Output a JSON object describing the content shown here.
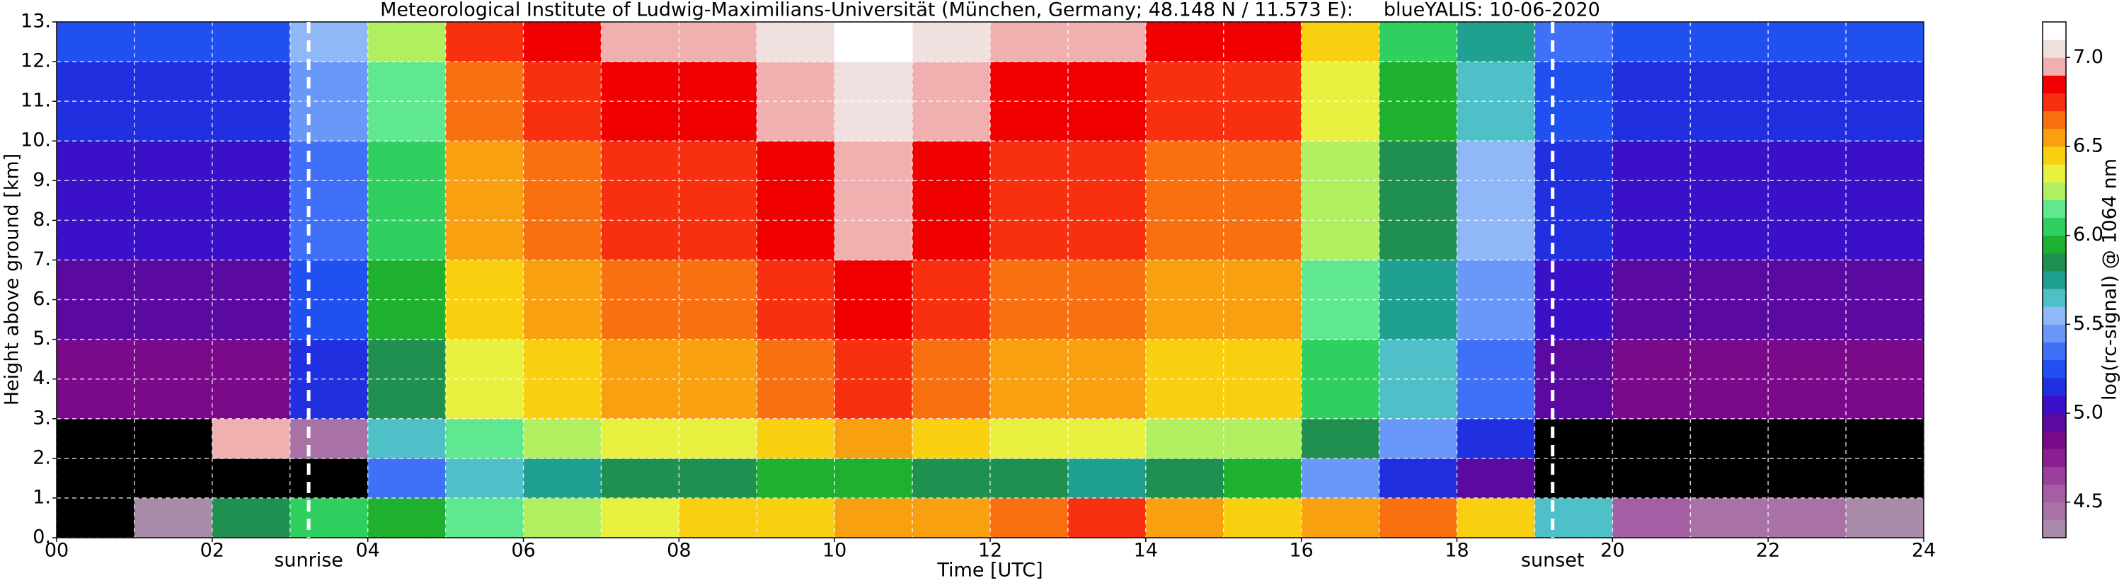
{
  "chart_data": {
    "type": "heatmap",
    "title": "Meteorological Institute of Ludwig-Maximilians-Universität (München, Germany; 48.148 N / 11.573 E):     blueYALIS: 10-06-2020",
    "xlabel": "Time [UTC]",
    "ylabel": "Height above ground [km]",
    "colorbar_label": "log(rc-signal) @ 1064 nm",
    "xlim": [
      0,
      24
    ],
    "ylim": [
      0,
      13
    ],
    "xticks": [
      {
        "value": 0,
        "label": "00"
      },
      {
        "value": 2,
        "label": "02"
      },
      {
        "value": 4,
        "label": "04"
      },
      {
        "value": 6,
        "label": "06"
      },
      {
        "value": 8,
        "label": "08"
      },
      10,
      12,
      14,
      16,
      18,
      20,
      22,
      24
    ],
    "xminorticks": [
      1,
      3,
      5,
      7,
      9,
      11,
      13,
      15,
      17,
      19,
      21,
      23
    ],
    "yticks": [
      {
        "value": 0,
        "label": "0."
      },
      {
        "value": 1,
        "label": "1."
      },
      {
        "value": 2,
        "label": "2."
      },
      {
        "value": 3,
        "label": "3."
      },
      {
        "value": 4,
        "label": "4."
      },
      {
        "value": 5,
        "label": "5."
      },
      {
        "value": 6,
        "label": "6."
      },
      {
        "value": 7,
        "label": "7."
      },
      {
        "value": 8,
        "label": "8."
      },
      {
        "value": 9,
        "label": "9."
      },
      {
        "value": 10,
        "label": "10."
      },
      {
        "value": 11,
        "label": "11."
      },
      {
        "value": 12,
        "label": "12."
      },
      {
        "value": 13,
        "label": "13."
      }
    ],
    "grid": true,
    "grid_color": "#ffffff",
    "xbins": [
      0,
      1,
      2,
      3,
      4,
      5,
      6,
      7,
      8,
      9,
      10,
      11,
      12,
      13,
      14,
      15,
      16,
      17,
      18,
      19,
      20,
      21,
      22,
      23,
      24
    ],
    "ybins": [
      0,
      1,
      2,
      3,
      4,
      5,
      6,
      7,
      8,
      9,
      10,
      11,
      12,
      13
    ],
    "z": [
      [
        4.2,
        4.3,
        5.8,
        6.0,
        5.9,
        6.1,
        6.2,
        6.3,
        6.4,
        6.4,
        6.5,
        6.5,
        6.6,
        6.7,
        6.5,
        6.4,
        6.5,
        6.6,
        6.4,
        5.6,
        4.5,
        4.4,
        4.4,
        4.3
      ],
      [
        4.0,
        4.0,
        4.0,
        4.2,
        5.3,
        5.6,
        5.7,
        5.8,
        5.8,
        5.9,
        5.9,
        5.8,
        5.8,
        5.7,
        5.8,
        5.9,
        5.4,
        5.1,
        4.9,
        4.1,
        4.0,
        4.0,
        4.0,
        4.0
      ],
      [
        4.1,
        4.1,
        6.9,
        4.4,
        5.6,
        6.1,
        6.2,
        6.3,
        6.3,
        6.4,
        6.5,
        6.4,
        6.3,
        6.3,
        6.2,
        6.2,
        5.8,
        5.4,
        5.1,
        4.2,
        4.1,
        4.1,
        4.1,
        4.1
      ],
      [
        4.8,
        4.8,
        4.8,
        5.1,
        5.8,
        6.3,
        6.4,
        6.5,
        6.5,
        6.6,
        6.7,
        6.6,
        6.5,
        6.5,
        6.4,
        6.4,
        6.0,
        5.6,
        5.3,
        4.9,
        4.8,
        4.8,
        4.8,
        4.8
      ],
      [
        4.8,
        4.8,
        4.8,
        5.1,
        5.8,
        6.3,
        6.4,
        6.5,
        6.5,
        6.6,
        6.7,
        6.6,
        6.5,
        6.5,
        6.4,
        6.4,
        6.0,
        5.6,
        5.3,
        4.9,
        4.8,
        4.8,
        4.8,
        4.8
      ],
      [
        4.9,
        4.9,
        4.9,
        5.2,
        5.9,
        6.4,
        6.5,
        6.6,
        6.6,
        6.7,
        6.8,
        6.7,
        6.6,
        6.6,
        6.5,
        6.5,
        6.1,
        5.7,
        5.4,
        5.0,
        4.9,
        4.9,
        4.9,
        4.9
      ],
      [
        4.9,
        4.9,
        4.9,
        5.2,
        5.9,
        6.4,
        6.5,
        6.6,
        6.6,
        6.7,
        6.8,
        6.7,
        6.6,
        6.6,
        6.5,
        6.5,
        6.1,
        5.7,
        5.4,
        5.0,
        4.9,
        4.9,
        4.9,
        4.9
      ],
      [
        5.0,
        5.0,
        5.0,
        5.3,
        6.0,
        6.5,
        6.6,
        6.7,
        6.7,
        6.8,
        6.9,
        6.8,
        6.7,
        6.7,
        6.6,
        6.6,
        6.2,
        5.8,
        5.5,
        5.1,
        5.0,
        5.0,
        5.0,
        5.0
      ],
      [
        5.0,
        5.0,
        5.0,
        5.3,
        6.0,
        6.5,
        6.6,
        6.7,
        6.7,
        6.8,
        6.9,
        6.8,
        6.7,
        6.7,
        6.6,
        6.6,
        6.2,
        5.8,
        5.5,
        5.1,
        5.0,
        5.0,
        5.0,
        5.0
      ],
      [
        5.0,
        5.0,
        5.0,
        5.3,
        6.0,
        6.5,
        6.6,
        6.7,
        6.7,
        6.8,
        6.9,
        6.8,
        6.7,
        6.7,
        6.6,
        6.6,
        6.2,
        5.8,
        5.5,
        5.1,
        5.0,
        5.0,
        5.0,
        5.0
      ],
      [
        5.1,
        5.1,
        5.1,
        5.4,
        6.1,
        6.6,
        6.7,
        6.8,
        6.8,
        6.9,
        7.0,
        6.9,
        6.8,
        6.8,
        6.7,
        6.7,
        6.3,
        5.9,
        5.6,
        5.2,
        5.1,
        5.1,
        5.1,
        5.1
      ],
      [
        5.1,
        5.1,
        5.1,
        5.4,
        6.1,
        6.6,
        6.7,
        6.8,
        6.8,
        6.9,
        7.0,
        6.9,
        6.8,
        6.8,
        6.7,
        6.7,
        6.3,
        5.9,
        5.6,
        5.2,
        5.1,
        5.1,
        5.1,
        5.1
      ],
      [
        5.2,
        5.2,
        5.2,
        5.5,
        6.2,
        6.7,
        6.8,
        6.9,
        6.9,
        7.0,
        7.1,
        7.0,
        6.9,
        6.9,
        6.8,
        6.8,
        6.4,
        6.0,
        5.7,
        5.3,
        5.2,
        5.2,
        5.2,
        5.2
      ]
    ],
    "clim": [
      4.3,
      7.2
    ],
    "under_color": "#000000",
    "colors": [
      "#a98aa8",
      "#a872a6",
      "#a45ea4",
      "#9b3f9e",
      "#8a1f92",
      "#7a0a8a",
      "#5a0aa0",
      "#3a10c8",
      "#2030e0",
      "#2050f0",
      "#4070f8",
      "#6a98f8",
      "#90b8f8",
      "#50c0c8",
      "#20a090",
      "#209050",
      "#20b030",
      "#30d060",
      "#60e890",
      "#b0f060",
      "#e8f040",
      "#f8d010",
      "#f8a010",
      "#f87010",
      "#f83010",
      "#f00000",
      "#f0b0b0",
      "#f0e0e0",
      "#ffffff"
    ],
    "cticks": [
      {
        "value": 4.5,
        "label": "4.5"
      },
      {
        "value": 5,
        "label": "5.0"
      },
      {
        "value": 5.5,
        "label": "5.5"
      },
      {
        "value": 6,
        "label": "6.0"
      },
      {
        "value": 6.5,
        "label": "6.5"
      },
      {
        "value": 7,
        "label": "7.0"
      }
    ],
    "annotations": [
      {
        "text": "sunrise",
        "x": 3.24
      },
      {
        "text": "sunset",
        "x": 19.23
      }
    ]
  }
}
